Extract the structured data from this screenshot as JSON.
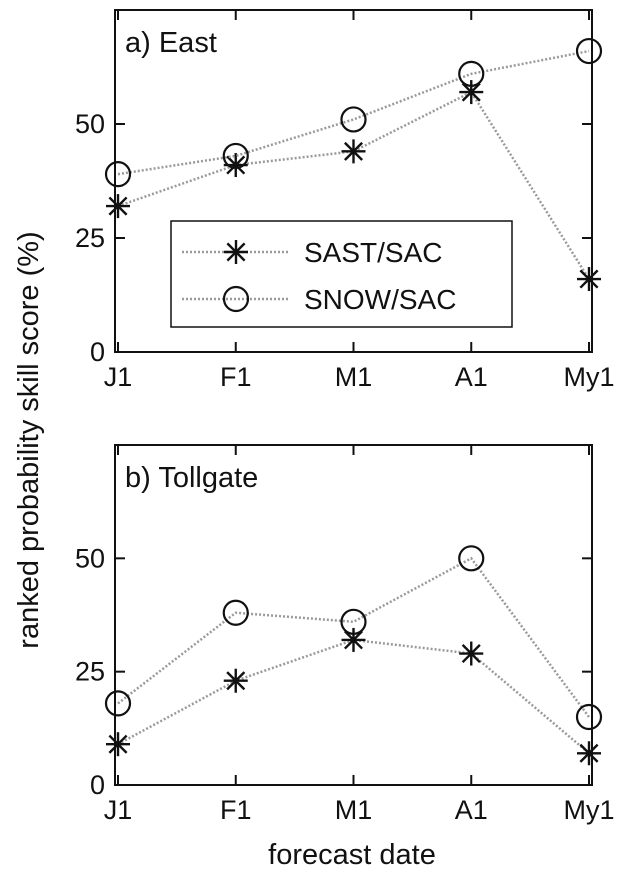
{
  "figure": {
    "ylabel": "ranked probability skill score (%)",
    "xlabel": "forecast date"
  },
  "legend": {
    "placement": "center",
    "entries": [
      {
        "name": "SAST/SAC",
        "marker": "star"
      },
      {
        "name": "SNOW/SAC",
        "marker": "circle"
      }
    ]
  },
  "chart_data": [
    {
      "type": "line",
      "title": "a) East",
      "categories": [
        "J1",
        "F1",
        "M1",
        "A1",
        "My1"
      ],
      "ylim": [
        0,
        75
      ],
      "yticks": [
        0,
        25,
        50
      ],
      "grid": false,
      "series": [
        {
          "name": "SAST/SAC",
          "marker": "star",
          "values": [
            32,
            41,
            44,
            57,
            16
          ]
        },
        {
          "name": "SNOW/SAC",
          "marker": "circle",
          "values": [
            39,
            43,
            51,
            61,
            66
          ]
        }
      ]
    },
    {
      "type": "line",
      "title": "b) Tollgate",
      "categories": [
        "J1",
        "F1",
        "M1",
        "A1",
        "My1"
      ],
      "ylim": [
        0,
        75
      ],
      "yticks": [
        0,
        25,
        50
      ],
      "grid": false,
      "series": [
        {
          "name": "SAST/SAC",
          "marker": "star",
          "values": [
            9,
            23,
            32,
            29,
            7
          ]
        },
        {
          "name": "SNOW/SAC",
          "marker": "circle",
          "values": [
            18,
            38,
            36,
            50,
            15
          ]
        }
      ]
    }
  ]
}
